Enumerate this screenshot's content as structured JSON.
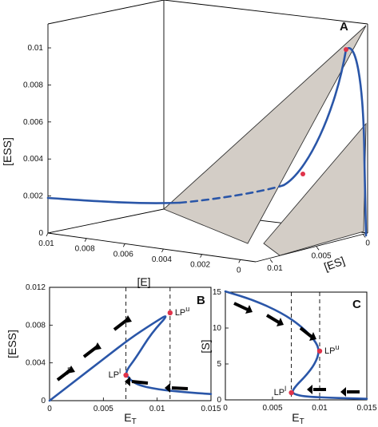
{
  "chart_data": [
    {
      "type": "line",
      "panel_label": "A",
      "projection": "3d",
      "xlabel": "[E]",
      "ylabel": "[ES]",
      "zlabel": "[ESS]",
      "x_ticks": [
        "0.01",
        "0.008",
        "0.006",
        "0.004",
        "0.002",
        "0"
      ],
      "y_ticks": [
        "0.01",
        "0.005",
        "0"
      ],
      "z_ticks": [
        "0",
        "0.002",
        "0.004",
        "0.006",
        "0.008",
        "0.01"
      ],
      "xlim": [
        0,
        0.011
      ],
      "ylim": [
        0,
        0.011
      ],
      "zlim": [
        0,
        0.011
      ],
      "curve": [
        {
          "E": 0.0108,
          "ES": 0.0,
          "ESS": 0.00175
        },
        {
          "E": 0.008,
          "ES": 0.0,
          "ESS": 0.0017
        },
        {
          "E": 0.004,
          "ES": 0.0002,
          "ESS": 0.00172
        },
        {
          "E": 0.0025,
          "ES": 0.0016,
          "ESS": 0.0022
        },
        {
          "E": 0.0015,
          "ES": 0.0028,
          "ESS": 0.0032
        },
        {
          "E": 0.0008,
          "ES": 0.0035,
          "ESS": 0.0055
        },
        {
          "E": 0.0003,
          "ES": 0.0038,
          "ESS": 0.0085
        },
        {
          "E": 0.0001,
          "ES": 0.0036,
          "ESS": 0.0098
        },
        {
          "E": 0.0001,
          "ES": 0.0025,
          "ESS": 0.0075
        },
        {
          "E": 0.0,
          "ES": 0.0012,
          "ESS": 0.0035
        },
        {
          "E": 0.0,
          "ES": 0.0003,
          "ESS": 0.0003
        }
      ],
      "unstable_segment": "dotted between the origin-plane crossing and the lower limit point",
      "limit_points": [
        {
          "E": 0.0015,
          "ES": 0.0028,
          "ESS": 0.0032
        },
        {
          "E": 0.0001,
          "ES": 0.0036,
          "ESS": 0.0098
        }
      ]
    },
    {
      "type": "line",
      "panel_label": "B",
      "xlabel": "E_T",
      "ylabel": "[ESS]",
      "xlim": [
        0,
        0.015
      ],
      "ylim": [
        0,
        0.012
      ],
      "x_ticks": [
        "0",
        "0.005",
        "0.01",
        "0.015"
      ],
      "y_ticks": [
        "0",
        "0.004",
        "0.008",
        "0.012"
      ],
      "series": [
        {
          "x": [
            0,
            0.0025,
            0.005,
            0.0075,
            0.0095,
            0.0112,
            0.0095,
            0.008,
            0.0072,
            0.0071,
            0.008,
            0.01,
            0.0125,
            0.015
          ],
          "y": [
            0,
            0.0022,
            0.0044,
            0.0066,
            0.0081,
            0.0093,
            0.0072,
            0.0045,
            0.0033,
            0.0027,
            0.0017,
            0.0012,
            0.0009,
            0.0007
          ]
        }
      ],
      "limit_points": [
        {
          "label": "LP",
          "sup": "u",
          "x": 0.0112,
          "y": 0.0093
        },
        {
          "label": "LP",
          "sup": "l",
          "x": 0.0071,
          "y": 0.0027
        }
      ],
      "vlines": [
        0.0071,
        0.0112
      ]
    },
    {
      "type": "line",
      "panel_label": "C",
      "xlabel": "E_T",
      "ylabel": "[S]",
      "xlim": [
        0,
        0.015
      ],
      "ylim": [
        0,
        15
      ],
      "x_ticks": [
        "0",
        "0.005",
        "0.01",
        "0.015"
      ],
      "y_ticks": [
        "0",
        "5",
        "10",
        "15"
      ],
      "series": [
        {
          "x": [
            0,
            0.003,
            0.006,
            0.008,
            0.0095,
            0.01,
            0.0095,
            0.0085,
            0.0075,
            0.007,
            0.0078,
            0.009,
            0.011,
            0.013,
            0.015
          ],
          "y": [
            15.1,
            13.9,
            12.1,
            10.3,
            8.3,
            6.8,
            5.0,
            3.3,
            2.0,
            1.0,
            0.6,
            0.42,
            0.3,
            0.22,
            0.15
          ]
        }
      ],
      "limit_points": [
        {
          "label": "LP",
          "sup": "u",
          "x": 0.01,
          "y": 6.8
        },
        {
          "label": "LP",
          "sup": "l",
          "x": 0.007,
          "y": 1.0
        }
      ],
      "vlines": [
        0.007,
        0.01
      ]
    }
  ]
}
